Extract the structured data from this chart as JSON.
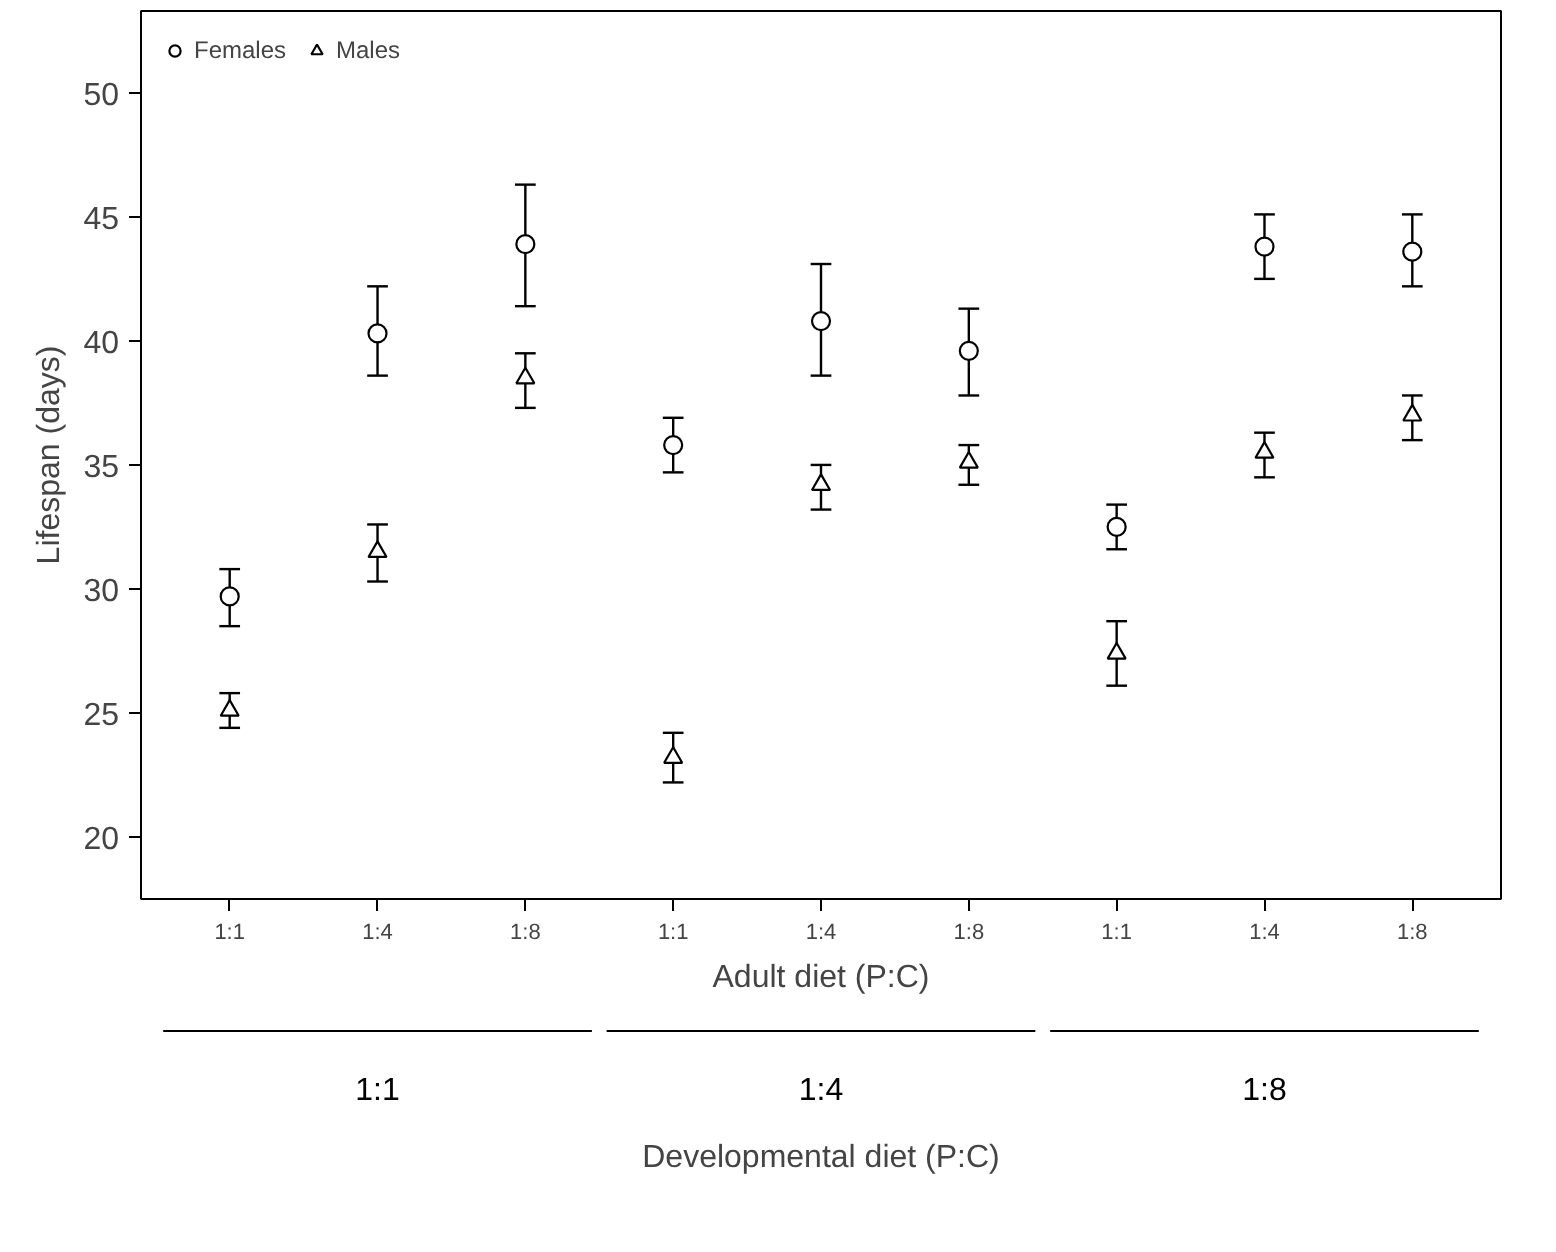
{
  "chart_data": {
    "type": "scatter",
    "xlabel": "Adult diet (P:C)",
    "ylabel": "Lifespan (days)",
    "x2label": "Developmental diet (P:C)",
    "categories": [
      "1:1",
      "1:4",
      "1:8",
      "1:1",
      "1:4",
      "1:8",
      "1:1",
      "1:4",
      "1:8"
    ],
    "annotations": [
      "1:1",
      "1:4",
      "1:8"
    ],
    "ylim": [
      17.5,
      53.3
    ],
    "yticks": [
      20,
      25,
      30,
      35,
      40,
      45,
      50
    ],
    "legend": "top left",
    "series": [
      {
        "name": "Females",
        "color": "#000000",
        "marker": "circle",
        "values": [
          29.7,
          40.3,
          43.9,
          35.8,
          40.8,
          39.6,
          32.5,
          43.8,
          43.6
        ],
        "errors": [
          [
            28.5,
            30.8
          ],
          [
            38.6,
            42.2
          ],
          [
            41.4,
            46.3
          ],
          [
            34.7,
            36.9
          ],
          [
            38.6,
            43.1
          ],
          [
            37.8,
            41.3
          ],
          [
            31.6,
            33.4
          ],
          [
            42.5,
            45.1
          ],
          [
            42.2,
            45.1
          ]
        ]
      },
      {
        "name": "Males",
        "color": "#000000",
        "marker": "triangle",
        "values": [
          25.1,
          31.5,
          38.5,
          23.2,
          34.2,
          35.1,
          27.4,
          35.5,
          37.0
        ],
        "errors": [
          [
            24.4,
            25.8
          ],
          [
            30.3,
            32.6
          ],
          [
            37.3,
            39.5
          ],
          [
            22.2,
            24.2
          ],
          [
            33.2,
            35.0
          ],
          [
            34.2,
            35.8
          ],
          [
            26.1,
            28.7
          ],
          [
            34.5,
            36.3
          ],
          [
            36.0,
            37.8
          ]
        ]
      }
    ]
  }
}
